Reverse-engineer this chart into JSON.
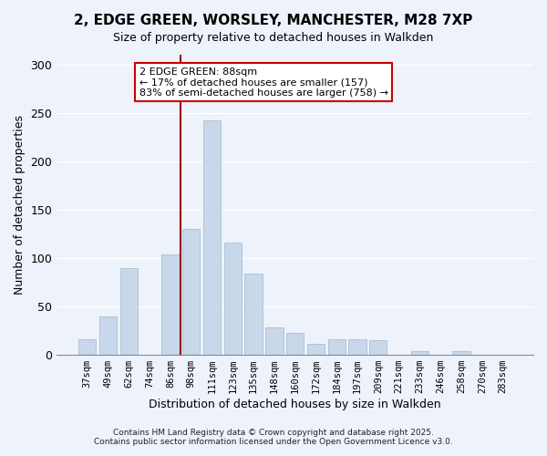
{
  "title": "2, EDGE GREEN, WORSLEY, MANCHESTER, M28 7XP",
  "subtitle": "Size of property relative to detached houses in Walkden",
  "xlabel": "Distribution of detached houses by size in Walkden",
  "ylabel": "Number of detached properties",
  "bar_color": "#c8d8ea",
  "bar_edge_color": "#aabfd0",
  "categories": [
    "37sqm",
    "49sqm",
    "62sqm",
    "74sqm",
    "86sqm",
    "98sqm",
    "111sqm",
    "123sqm",
    "135sqm",
    "148sqm",
    "160sqm",
    "172sqm",
    "184sqm",
    "197sqm",
    "209sqm",
    "221sqm",
    "233sqm",
    "246sqm",
    "258sqm",
    "270sqm",
    "283sqm"
  ],
  "values": [
    16,
    40,
    90,
    0,
    104,
    130,
    242,
    116,
    84,
    28,
    23,
    11,
    16,
    16,
    15,
    0,
    4,
    0,
    4,
    0,
    0
  ],
  "ylim": [
    0,
    310
  ],
  "yticks": [
    0,
    50,
    100,
    150,
    200,
    250,
    300
  ],
  "vline_color": "#990000",
  "annotation_title": "2 EDGE GREEN: 88sqm",
  "annotation_line1": "← 17% of detached houses are smaller (157)",
  "annotation_line2": "83% of semi-detached houses are larger (758) →",
  "annotation_box_color": "#ffffff",
  "annotation_box_edge": "#cc0000",
  "footer1": "Contains HM Land Registry data © Crown copyright and database right 2025.",
  "footer2": "Contains public sector information licensed under the Open Government Licence v3.0.",
  "background_color": "#eef2fa",
  "grid_color": "#ffffff"
}
